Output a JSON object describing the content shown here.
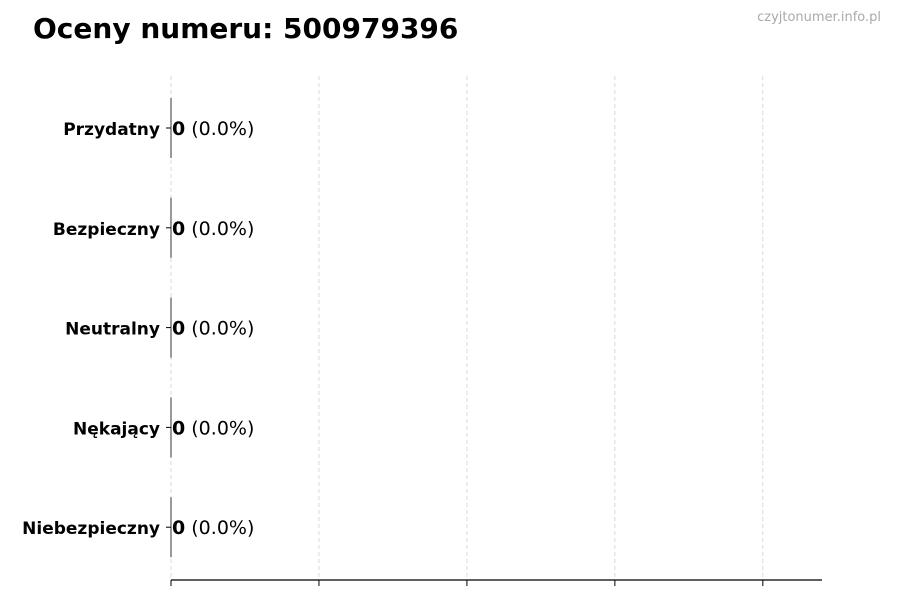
{
  "header": {
    "title": "Oceny numeru: 500979396",
    "watermark": "czyjtonumer.info.pl"
  },
  "chart_data": {
    "type": "bar",
    "orientation": "horizontal",
    "categories": [
      "Przydatny",
      "Bezpieczny",
      "Neutralny",
      "Nękający",
      "Niebezpieczny"
    ],
    "values": [
      0,
      0,
      0,
      0,
      0
    ],
    "data_labels": [
      {
        "count": "0",
        "percent": "(0.0%)"
      },
      {
        "count": "0",
        "percent": "(0.0%)"
      },
      {
        "count": "0",
        "percent": "(0.0%)"
      },
      {
        "count": "0",
        "percent": "(0.0%)"
      },
      {
        "count": "0",
        "percent": "(0.0%)"
      }
    ],
    "title": "Oceny numeru: 500979396",
    "xlabel": "",
    "ylabel": "",
    "xlim": [
      0,
      4.4
    ],
    "xticks": [
      0,
      1,
      2,
      3,
      4
    ],
    "grid": "x, dashed",
    "colors": {
      "grid": "#d0d0d0",
      "axis": "#000000",
      "bar_edge": "#333333"
    }
  }
}
